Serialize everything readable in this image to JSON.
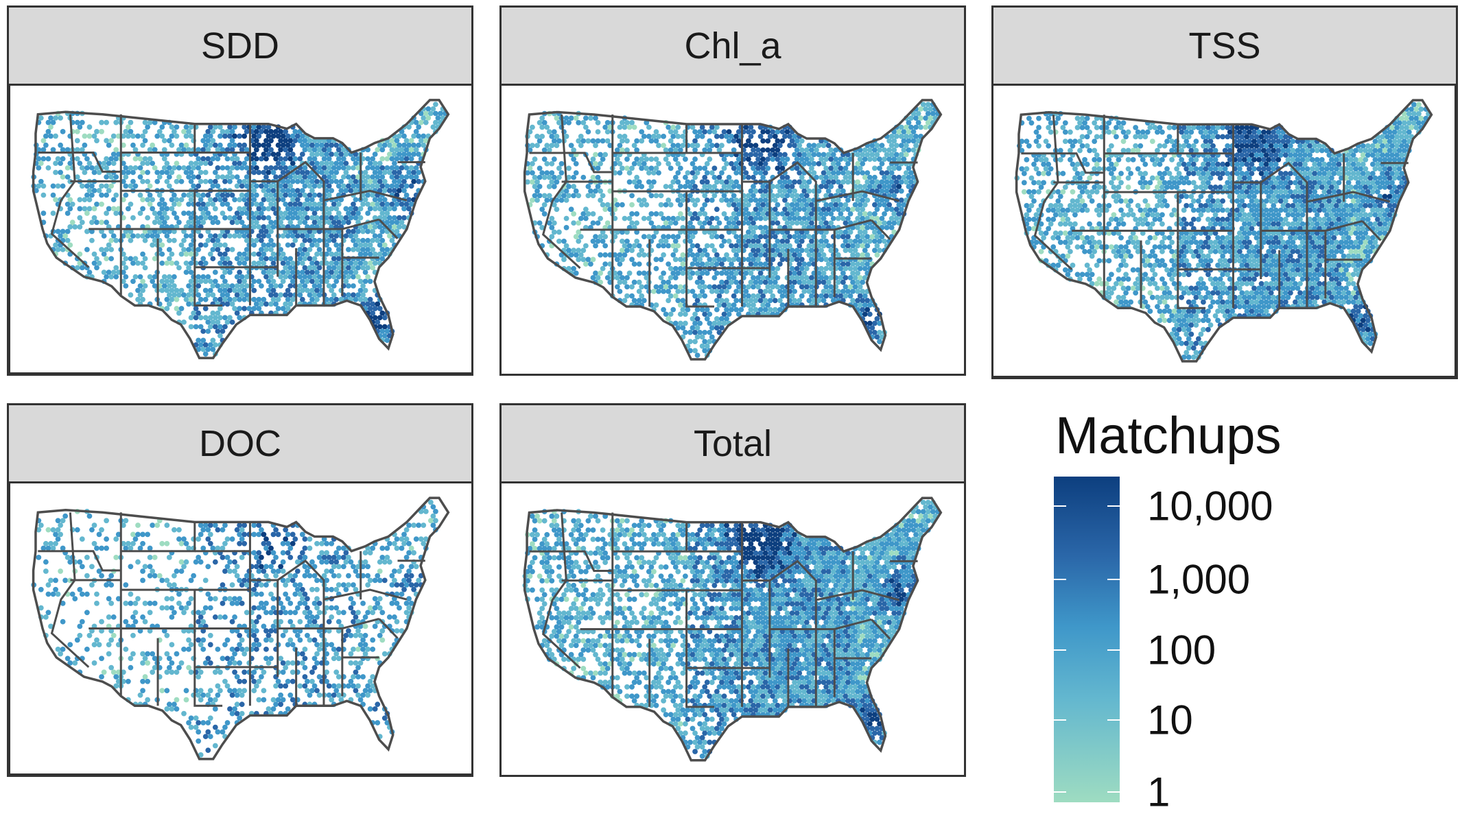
{
  "panels": [
    {
      "title": "SDD",
      "id": "sdd",
      "density": 0.78,
      "hot": 1.0
    },
    {
      "title": "Chl_a",
      "id": "chla",
      "density": 0.8,
      "hot": 0.8
    },
    {
      "title": "TSS",
      "id": "tss",
      "density": 0.92,
      "hot": 0.7
    },
    {
      "title": "DOC",
      "id": "doc",
      "density": 0.45,
      "hot": 0.55
    },
    {
      "title": "Total",
      "id": "total",
      "density": 0.95,
      "hot": 1.0
    }
  ],
  "legend": {
    "title": "Matchups",
    "scale": "log10",
    "ticks": [
      "10,000",
      "1,000",
      "100",
      "10",
      "1"
    ],
    "tick_values": [
      10000,
      1000,
      100,
      10,
      1
    ],
    "colors": [
      "#9edcc1",
      "#63b7cf",
      "#3f97c9",
      "#2a66a8",
      "#0d3f7f"
    ]
  }
}
